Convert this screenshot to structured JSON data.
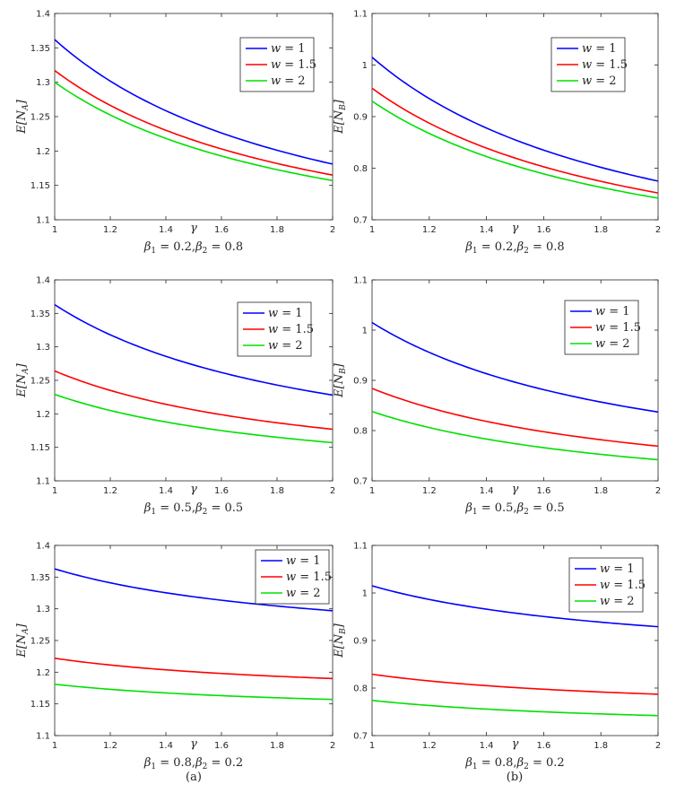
{
  "chart_data": [
    {
      "type": "line",
      "panel": "a1",
      "xlabel": "γ",
      "ylabel": "E[N_A]",
      "subtitle": "β1 = 0.2, β2 = 0.8",
      "xlim": [
        1,
        2
      ],
      "ylim": [
        1.1,
        1.4
      ],
      "xticks": [
        1,
        1.2,
        1.4,
        1.6,
        1.8,
        2
      ],
      "yticks": [
        1.1,
        1.15,
        1.2,
        1.25,
        1.3,
        1.35,
        1.4
      ],
      "series": [
        {
          "name": "w = 1",
          "color": "#0000ff",
          "values": [
            1.362,
            1.181
          ]
        },
        {
          "name": "w = 1.5",
          "color": "#ff0000",
          "values": [
            1.317,
            1.165
          ]
        },
        {
          "name": "w = 2",
          "color": "#00e000",
          "values": [
            1.3,
            1.157
          ]
        }
      ],
      "legend": "top-right"
    },
    {
      "type": "line",
      "panel": "b1",
      "xlabel": "γ",
      "ylabel": "E[N_B]",
      "subtitle": "β1 = 0.2, β2 = 0.8",
      "xlim": [
        1,
        2
      ],
      "ylim": [
        0.7,
        1.1
      ],
      "xticks": [
        1,
        1.2,
        1.4,
        1.6,
        1.8,
        2
      ],
      "yticks": [
        0.7,
        0.8,
        0.9,
        1,
        1.1
      ],
      "series": [
        {
          "name": "w = 1",
          "color": "#0000ff",
          "values": [
            1.015,
            0.775
          ]
        },
        {
          "name": "w = 1.5",
          "color": "#ff0000",
          "values": [
            0.955,
            0.752
          ]
        },
        {
          "name": "w = 2",
          "color": "#00e000",
          "values": [
            0.93,
            0.742
          ]
        }
      ],
      "legend": "top-right"
    },
    {
      "type": "line",
      "panel": "a2",
      "xlabel": "γ",
      "ylabel": "E[N_A]",
      "subtitle": "β1 = 0.5, β2 = 0.5",
      "xlim": [
        1,
        2
      ],
      "ylim": [
        1.1,
        1.4
      ],
      "xticks": [
        1,
        1.2,
        1.4,
        1.6,
        1.8,
        2
      ],
      "yticks": [
        1.1,
        1.15,
        1.2,
        1.25,
        1.3,
        1.35,
        1.4
      ],
      "series": [
        {
          "name": "w = 1",
          "color": "#0000ff",
          "values": [
            1.363,
            1.228
          ]
        },
        {
          "name": "w = 1.5",
          "color": "#ff0000",
          "values": [
            1.264,
            1.177
          ]
        },
        {
          "name": "w = 2",
          "color": "#00e000",
          "values": [
            1.229,
            1.157
          ]
        }
      ],
      "legend": "top-right"
    },
    {
      "type": "line",
      "panel": "b2",
      "xlabel": "γ",
      "ylabel": "E[N_B]",
      "subtitle": "β1 = 0.5, β2 = 0.5",
      "xlim": [
        1,
        2
      ],
      "ylim": [
        0.7,
        1.1
      ],
      "xticks": [
        1,
        1.2,
        1.4,
        1.6,
        1.8,
        2
      ],
      "yticks": [
        0.7,
        0.8,
        0.9,
        1,
        1.1
      ],
      "series": [
        {
          "name": "w = 1",
          "color": "#0000ff",
          "values": [
            1.015,
            0.837
          ]
        },
        {
          "name": "w = 1.5",
          "color": "#ff0000",
          "values": [
            0.884,
            0.769
          ]
        },
        {
          "name": "w = 2",
          "color": "#00e000",
          "values": [
            0.838,
            0.742
          ]
        }
      ],
      "legend": "top-right"
    },
    {
      "type": "line",
      "panel": "a3",
      "xlabel": "γ",
      "ylabel": "E[N_A]",
      "subtitle": "β1 = 0.8, β2 = 0.2",
      "xlim": [
        1,
        2
      ],
      "ylim": [
        1.1,
        1.4
      ],
      "xticks": [
        1,
        1.2,
        1.4,
        1.6,
        1.8,
        2
      ],
      "yticks": [
        1.1,
        1.15,
        1.2,
        1.25,
        1.3,
        1.35,
        1.4
      ],
      "series": [
        {
          "name": "w = 1",
          "color": "#0000ff",
          "values": [
            1.363,
            1.297
          ]
        },
        {
          "name": "w = 1.5",
          "color": "#ff0000",
          "values": [
            1.222,
            1.19
          ]
        },
        {
          "name": "w = 2",
          "color": "#00e000",
          "values": [
            1.181,
            1.157
          ]
        }
      ],
      "legend": "top-right"
    },
    {
      "type": "line",
      "panel": "b3",
      "xlabel": "γ",
      "ylabel": "E[N_B]",
      "subtitle": "β1 = 0.8, β2 = 0.2",
      "xlim": [
        1,
        2
      ],
      "ylim": [
        0.7,
        1.1
      ],
      "xticks": [
        1,
        1.2,
        1.4,
        1.6,
        1.8,
        2
      ],
      "yticks": [
        0.7,
        0.8,
        0.9,
        1,
        1.1
      ],
      "series": [
        {
          "name": "w = 1",
          "color": "#0000ff",
          "values": [
            1.015,
            0.929
          ]
        },
        {
          "name": "w = 1.5",
          "color": "#ff0000",
          "values": [
            0.829,
            0.787
          ]
        },
        {
          "name": "w = 2",
          "color": "#00e000",
          "values": [
            0.774,
            0.742
          ]
        }
      ],
      "legend": "top-right"
    }
  ],
  "column_labels": {
    "a": "(a)",
    "b": "(b)"
  }
}
